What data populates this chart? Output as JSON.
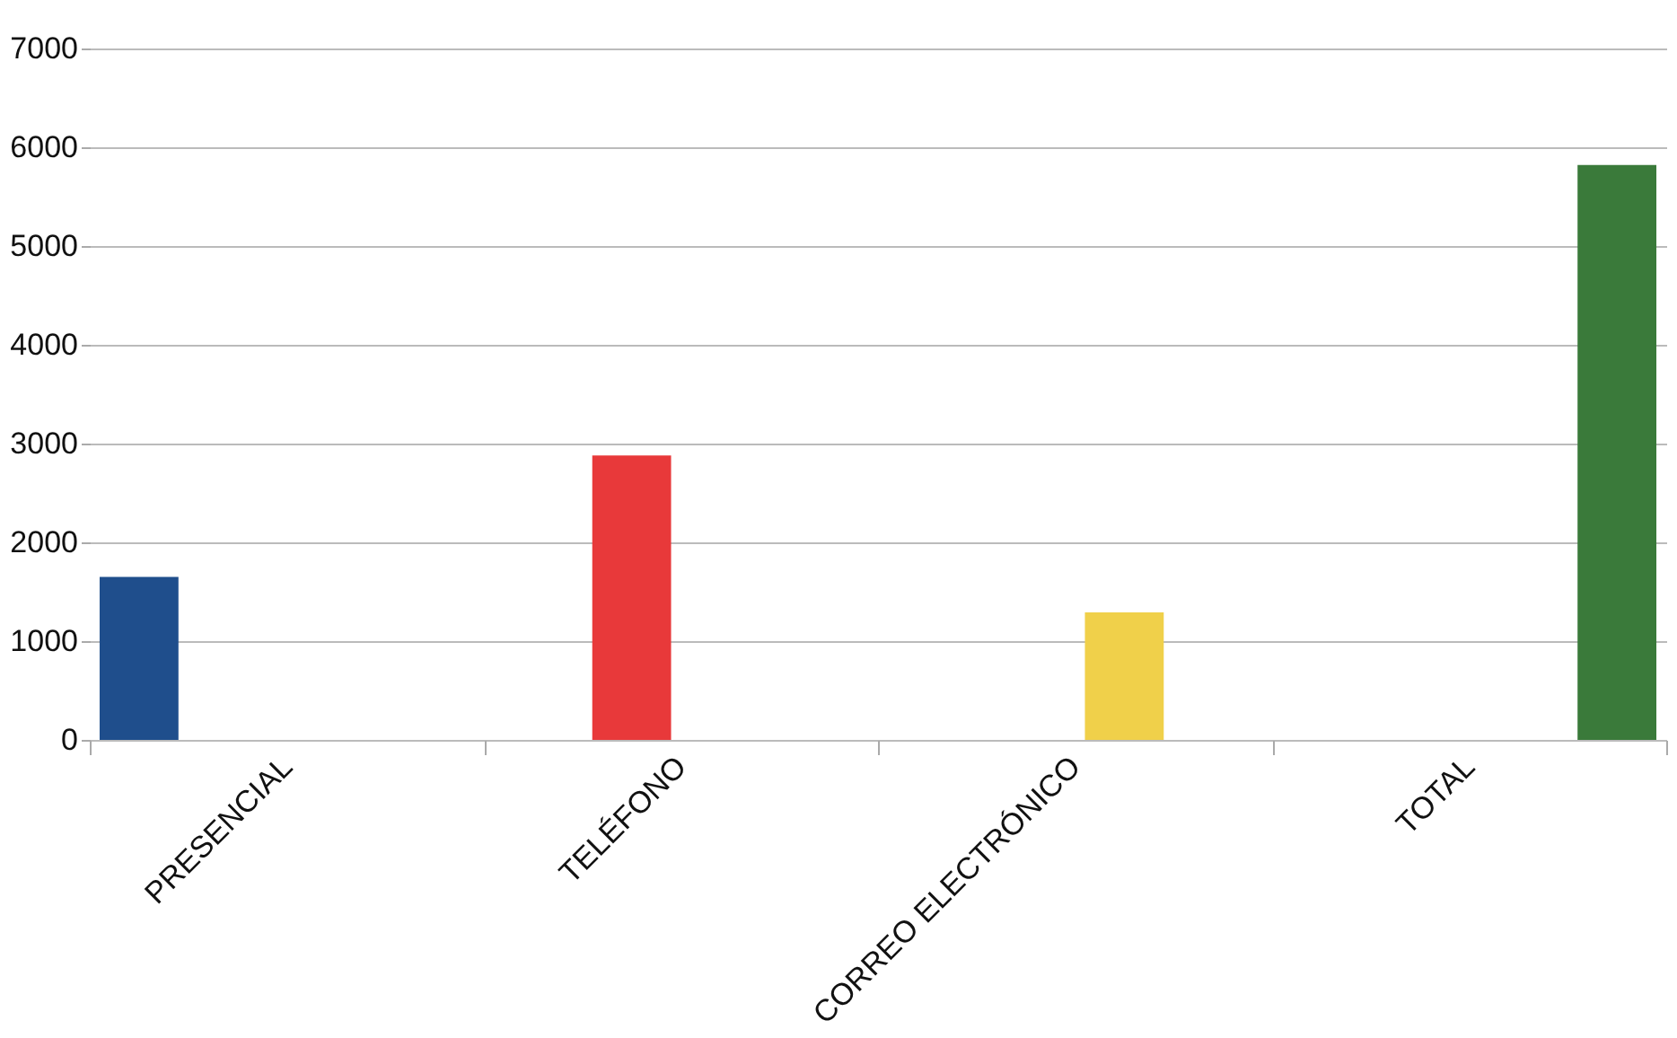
{
  "chart_data": {
    "type": "bar",
    "categories": [
      "PRESENCIAL",
      "TELÉFONO",
      "CORREO ELECTRÓNICO",
      "TOTAL"
    ],
    "series": [
      {
        "color": "#1f4e8c",
        "values": [
          1650,
          null,
          null,
          null
        ]
      },
      {
        "color": "#e8393a",
        "values": [
          null,
          2880,
          null,
          null
        ]
      },
      {
        "color": "#f0d04a",
        "values": [
          null,
          null,
          1290,
          null
        ]
      },
      {
        "color": "#3a7a3a",
        "values": [
          null,
          null,
          null,
          5820
        ]
      }
    ],
    "ylim": [
      0,
      7000
    ],
    "yticks": [
      0,
      1000,
      2000,
      3000,
      4000,
      5000,
      6000,
      7000
    ],
    "grid": "y"
  }
}
